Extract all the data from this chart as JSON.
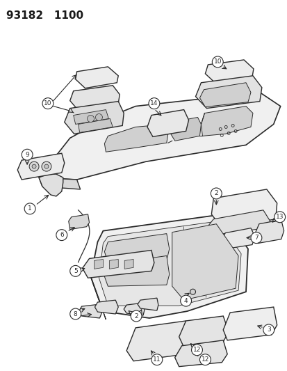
{
  "title": "93182   1100",
  "title_fontsize": 11,
  "bg_color": "#ffffff",
  "line_color": "#2a2a2a",
  "label_color": "#1a1a1a",
  "fig_width": 4.14,
  "fig_height": 5.33,
  "dpi": 100
}
